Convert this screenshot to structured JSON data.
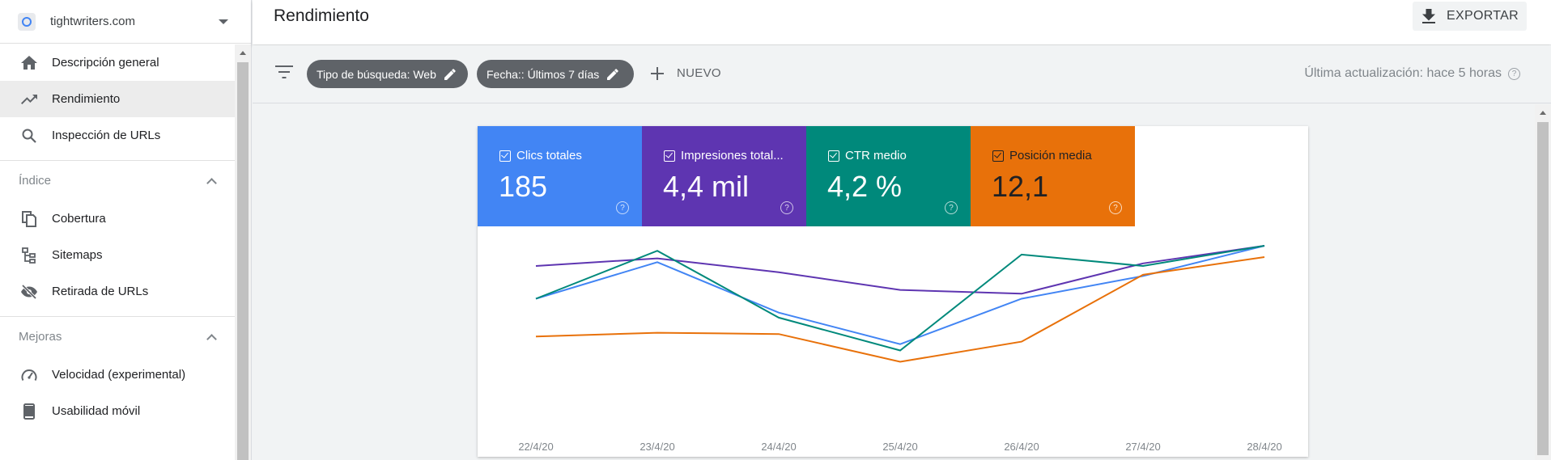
{
  "sidebar": {
    "property_name": "tightwriters.com",
    "items": [
      {
        "label": "Descripción general",
        "icon": "home-icon"
      },
      {
        "label": "Rendimiento",
        "icon": "trending-up-icon",
        "active": true
      },
      {
        "label": "Inspección de URLs",
        "icon": "search-icon"
      }
    ],
    "sections": [
      {
        "title": "Índice",
        "items": [
          {
            "label": "Cobertura",
            "icon": "file-copy-icon"
          },
          {
            "label": "Sitemaps",
            "icon": "sitemap-icon"
          },
          {
            "label": "Retirada de URLs",
            "icon": "eye-off-icon"
          }
        ]
      },
      {
        "title": "Mejoras",
        "items": [
          {
            "label": "Velocidad (experimental)",
            "icon": "speed-gauge-icon"
          },
          {
            "label": "Usabilidad móvil",
            "icon": "smartphone-icon"
          }
        ]
      }
    ]
  },
  "header": {
    "title": "Rendimiento",
    "export_label": "EXPORTAR"
  },
  "filters": {
    "chips": [
      {
        "label": "Tipo de búsqueda: Web"
      },
      {
        "label": "Fecha:: Últimos 7 días"
      }
    ],
    "new_label": "NUEVO",
    "last_update": "Última actualización: hace 5 horas"
  },
  "metrics": [
    {
      "label": "Clics totales",
      "value": "185",
      "color": "#4285f4"
    },
    {
      "label": "Impresiones total...",
      "value": "4,4 mil",
      "color": "#5e35b1"
    },
    {
      "label": "CTR medio",
      "value": "4,2 %",
      "color": "#00897b"
    },
    {
      "label": "Posición media",
      "value": "12,1",
      "color": "#e8710a"
    }
  ],
  "chart_data": {
    "type": "line",
    "categories": [
      "22/4/20",
      "23/4/20",
      "24/4/20",
      "25/4/20",
      "26/4/20",
      "27/4/20",
      "28/4/20"
    ],
    "series": [
      {
        "name": "Clics totales",
        "color": "#4285f4",
        "values": [
          0.58,
          0.87,
          0.47,
          0.22,
          0.58,
          0.76,
          1.0
        ]
      },
      {
        "name": "Impresiones totales",
        "color": "#5e35b1",
        "values": [
          0.84,
          0.9,
          0.79,
          0.65,
          0.62,
          0.86,
          1.0
        ]
      },
      {
        "name": "CTR medio",
        "color": "#00897b",
        "values": [
          0.58,
          0.96,
          0.43,
          0.17,
          0.93,
          0.84,
          1.0
        ]
      },
      {
        "name": "Posición media",
        "color": "#e8710a",
        "values": [
          0.28,
          0.31,
          0.3,
          0.08,
          0.24,
          0.77,
          0.91
        ]
      }
    ],
    "xlabel": "",
    "ylabel": "",
    "grid": false
  }
}
